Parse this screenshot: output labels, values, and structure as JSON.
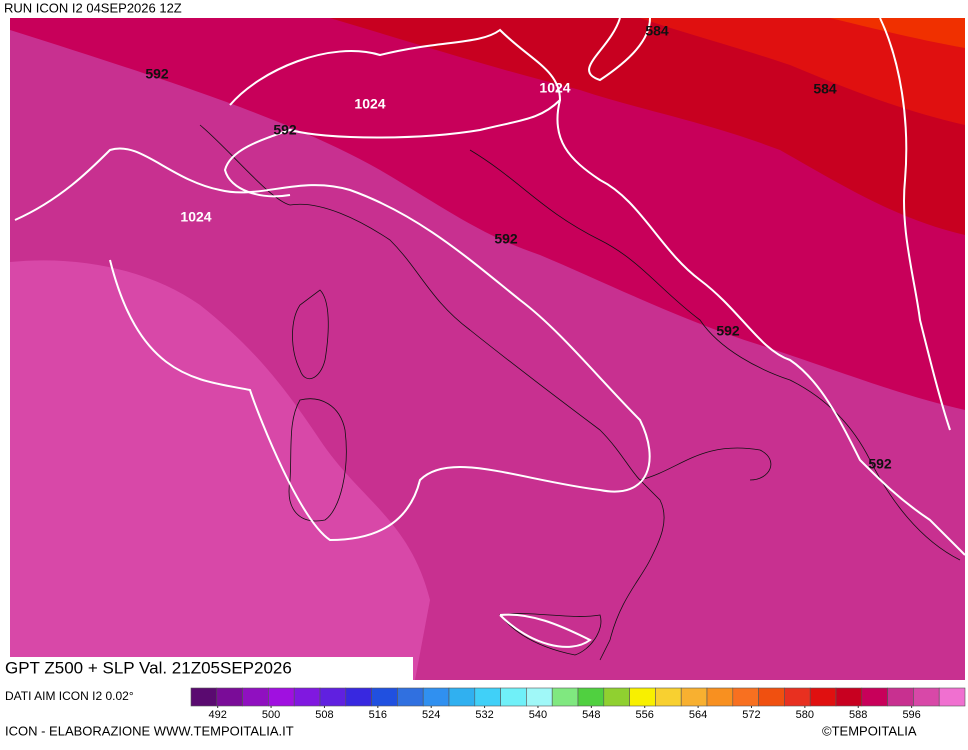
{
  "header": {
    "run": "RUN ICON I2 04SEP2026 12Z"
  },
  "title": "GPT Z500 + SLP Val. 21Z05SEP2026",
  "map": {
    "contour_labels": [
      592,
      1024,
      592,
      1024,
      592,
      584,
      1024,
      584,
      592,
      592
    ]
  },
  "legend": {
    "source": "DATI AIM ICON I2 0.02°",
    "range": [
      488,
      604
    ],
    "colors": [
      "#5a0a70",
      "#7a0c98",
      "#9010c0",
      "#a010e0",
      "#8018e0",
      "#6020e0",
      "#3828e0",
      "#2050e0",
      "#3070e0",
      "#3090f0",
      "#30b0f0",
      "#40d0f8",
      "#70f0f8",
      "#a0f8f8",
      "#80e880",
      "#50d040",
      "#90d030",
      "#f8f000",
      "#f8d030",
      "#f8b030",
      "#f89020",
      "#f87020",
      "#f05010",
      "#e83020",
      "#e01010",
      "#c80020",
      "#c8005a",
      "#c83090",
      "#d848a8",
      "#f070d0"
    ],
    "ticks": [
      492,
      500,
      508,
      516,
      524,
      532,
      540,
      548,
      556,
      564,
      572,
      580,
      588,
      596
    ]
  },
  "footer": {
    "credit": "ICON - ELABORAZIONE WWW.TEMPOITALIA.IT",
    "copyright": "©TEMPOITALIA"
  }
}
